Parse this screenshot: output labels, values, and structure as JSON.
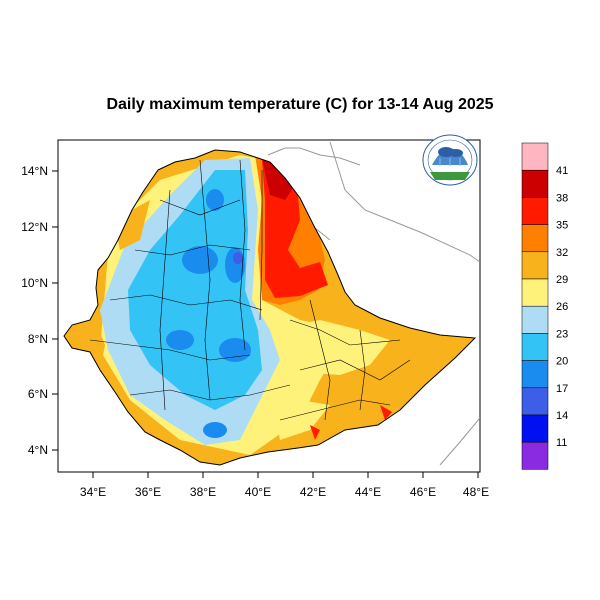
{
  "title": "Daily maximum temperature (C) for 13-14 Aug 2025",
  "map": {
    "x_ticks": [
      "34°E",
      "36°E",
      "38°E",
      "40°E",
      "42°E",
      "44°E",
      "46°E",
      "48°E"
    ],
    "y_ticks": [
      "14°N",
      "12°N",
      "10°N",
      "8°N",
      "6°N",
      "4°N"
    ]
  },
  "colorbar": {
    "labels": [
      "41",
      "38",
      "35",
      "32",
      "29",
      "26",
      "23",
      "20",
      "17",
      "14",
      "11"
    ],
    "colors": [
      "#ffb6c1",
      "#cc0000",
      "#ff1a00",
      "#ff8000",
      "#f7b21c",
      "#fff27a",
      "#aedcf5",
      "#33c4f5",
      "#1a8cf0",
      "#3d5ee6",
      "#0010f0",
      "#8a2be2"
    ]
  },
  "logo": {
    "name": "ethiopian-meteorology-institute-logo",
    "text": "Ethiopian Meteorology Institute"
  }
}
